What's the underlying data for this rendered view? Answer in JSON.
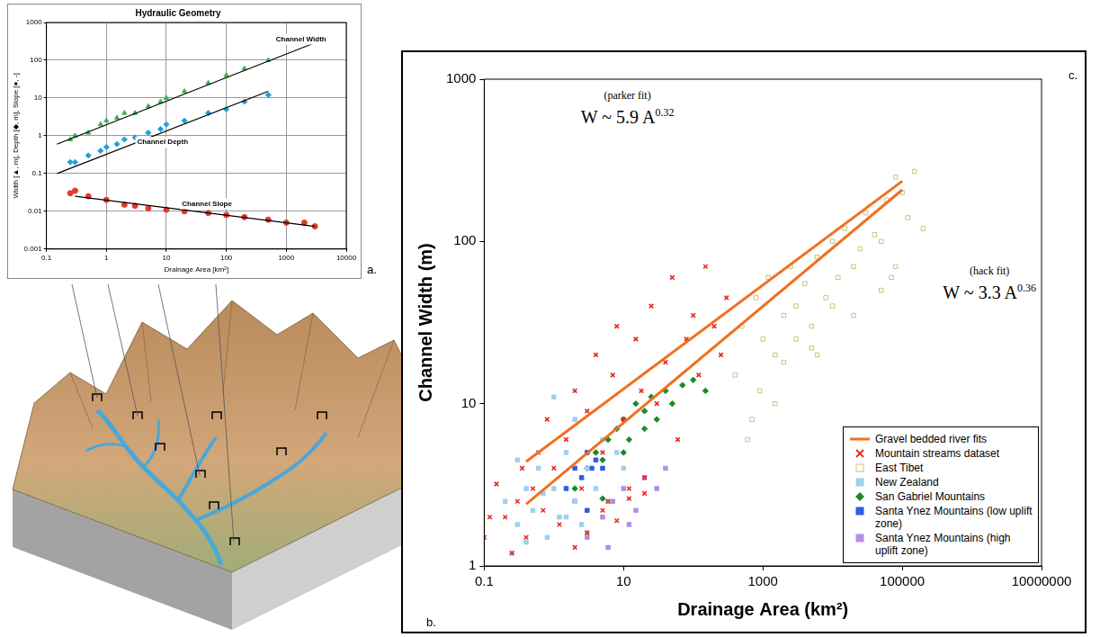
{
  "chart_data": [
    {
      "type": "scatter",
      "panel": "a.",
      "title": "Hydraulic Geometry",
      "x_label": "Drainage Area [km²]",
      "y_label": "Width [▲, m], Depth [◆, m], Slope [●, -]",
      "log": true,
      "grid": true,
      "xlim": [
        0.1,
        10000
      ],
      "xticks": [
        0.1,
        1,
        10,
        100,
        1000,
        10000
      ],
      "ylim": [
        0.001,
        1000
      ],
      "yticks": [
        0.001,
        0.01,
        0.1,
        1,
        10,
        100,
        1000
      ],
      "series": [
        {
          "name": "Channel Width",
          "color": "#3cb050",
          "marker": "triangle",
          "x": [
            0.25,
            0.3,
            0.5,
            0.8,
            1,
            1.5,
            2,
            3,
            5,
            8,
            10,
            20,
            50,
            100,
            200,
            500
          ],
          "values": [
            0.8,
            1,
            1.2,
            2,
            2.5,
            3,
            4,
            4,
            6,
            8,
            10,
            15,
            25,
            40,
            60,
            100
          ],
          "fit": {
            "x": [
              0.15,
              5000
            ],
            "values": [
              0.6,
              400
            ]
          }
        },
        {
          "name": "Channel Depth",
          "color": "#1f9fdf",
          "marker": "diamond",
          "x": [
            0.25,
            0.3,
            0.5,
            0.8,
            1,
            1.5,
            2,
            3,
            5,
            8,
            10,
            20,
            50,
            100,
            200,
            500
          ],
          "values": [
            0.2,
            0.2,
            0.3,
            0.4,
            0.5,
            0.6,
            0.8,
            0.9,
            1.2,
            1.5,
            2,
            2.5,
            4,
            5,
            8,
            12
          ],
          "fit": {
            "x": [
              0.15,
              500
            ],
            "values": [
              0.1,
              15
            ]
          }
        },
        {
          "name": "Channel Slope",
          "color": "#e03a28",
          "marker": "circle",
          "x": [
            0.25,
            0.3,
            0.5,
            1,
            2,
            3,
            5,
            10,
            20,
            50,
            100,
            200,
            500,
            1000,
            2000,
            3000
          ],
          "values": [
            0.03,
            0.035,
            0.025,
            0.02,
            0.015,
            0.014,
            0.012,
            0.011,
            0.01,
            0.009,
            0.008,
            0.007,
            0.006,
            0.005,
            0.005,
            0.004
          ],
          "fit": {
            "x": [
              0.3,
              3000
            ],
            "values": [
              0.025,
              0.004
            ]
          }
        }
      ]
    },
    {
      "type": "scatter",
      "panel": "c.",
      "x_label": "Drainage Area (km²)",
      "y_label": "Channel Width (m)",
      "log": true,
      "grid": false,
      "legend": "lower right",
      "xlim": [
        0.1,
        10000000
      ],
      "xticks": [
        0.1,
        10,
        1000,
        100000,
        10000000
      ],
      "ylim": [
        1,
        1000
      ],
      "yticks": [
        1,
        10,
        100,
        1000
      ],
      "annotations": [
        {
          "label": "(parker fit)",
          "formula": "W ~ 5.9 A",
          "exponent": "0.32"
        },
        {
          "label": "(hack fit)",
          "formula": "W ~ 3.3 A",
          "exponent": "0.36"
        }
      ],
      "series": [
        {
          "name": "Gravel bedded river fits",
          "type": "line",
          "color": "#f07020",
          "x": [
            0.4,
            100000,
            null,
            0.4,
            100000
          ],
          "values": [
            4.4,
            235,
            null,
            2.4,
            208
          ]
        },
        {
          "name": "Mountain streams dataset",
          "color": "#e8281e",
          "marker": "x",
          "x": [
            0.1,
            0.12,
            0.15,
            0.2,
            0.25,
            0.3,
            0.35,
            0.4,
            0.5,
            0.6,
            0.7,
            0.8,
            1,
            1.2,
            1.5,
            2,
            2.5,
            3,
            4,
            5,
            6,
            7,
            8,
            10,
            12,
            15,
            18,
            20,
            25,
            30,
            40,
            50,
            60,
            80,
            100,
            120,
            150,
            200,
            250,
            300,
            2,
            3,
            5,
            8,
            12,
            20
          ],
          "values": [
            1.5,
            2,
            3.2,
            2,
            1.2,
            2.5,
            4,
            1.5,
            3,
            5,
            2.2,
            8,
            4,
            1.8,
            6,
            12,
            3,
            9,
            20,
            5,
            2.5,
            15,
            30,
            8,
            3,
            25,
            12,
            2.8,
            40,
            10,
            18,
            60,
            6,
            25,
            35,
            15,
            70,
            30,
            20,
            45,
            1.3,
            1.6,
            2.2,
            1.9,
            2.6,
            3.5
          ]
        },
        {
          "name": "East Tibet",
          "color": "#c9c27a",
          "marker": "hollow_square",
          "x": [
            400,
            500,
            700,
            800,
            1000,
            1200,
            1500,
            2000,
            2500,
            3000,
            4000,
            5000,
            6000,
            8000,
            10000,
            12000,
            15000,
            20000,
            25000,
            30000,
            40000,
            50000,
            60000,
            70000,
            80000,
            100000,
            120000,
            150000,
            200000,
            1500,
            3000,
            6000,
            10000,
            20000,
            50000,
            80000,
            600,
            900,
            2000,
            5000
          ],
          "values": [
            15,
            30,
            8,
            45,
            25,
            60,
            20,
            35,
            70,
            40,
            55,
            30,
            80,
            45,
            100,
            60,
            120,
            70,
            90,
            150,
            110,
            100,
            180,
            60,
            250,
            200,
            140,
            270,
            120,
            10,
            25,
            20,
            40,
            35,
            50,
            70,
            6,
            12,
            18,
            22
          ]
        },
        {
          "name": "New Zealand",
          "color": "#9fd0f0",
          "marker": "square",
          "x": [
            0.2,
            0.3,
            0.4,
            0.5,
            0.6,
            0.8,
            1,
            1.2,
            1.5,
            2,
            2.5,
            3,
            4,
            5,
            6,
            8,
            10,
            0.4,
            0.7,
            1,
            1.5,
            2,
            3,
            0.3,
            0.25
          ],
          "values": [
            2.5,
            1.8,
            3,
            2.2,
            4,
            1.5,
            3,
            2,
            5,
            2.5,
            1.8,
            4,
            3,
            6,
            2.5,
            5,
            4,
            1.4,
            2.8,
            11,
            2,
            8,
            1.6,
            4.5,
            1.2
          ]
        },
        {
          "name": "San Gabriel Mountains",
          "color": "#1a8a2a",
          "marker": "diamond",
          "x": [
            2,
            3,
            4,
            5,
            6,
            8,
            10,
            12,
            15,
            20,
            25,
            30,
            40,
            50,
            70,
            100,
            150,
            5,
            10,
            20
          ],
          "values": [
            3,
            4,
            5,
            4.5,
            6,
            7,
            8,
            6,
            10,
            9,
            11,
            8,
            12,
            10,
            13,
            14,
            12,
            2.6,
            5,
            7
          ]
        },
        {
          "name": "Santa Ynez Mountains (low uplift zone)",
          "color": "#2f5ce0",
          "marker": "square",
          "x": [
            1.5,
            2,
            2.5,
            3,
            3.5,
            4,
            5,
            2,
            3
          ],
          "values": [
            3,
            4,
            3.5,
            5,
            4,
            4.5,
            4,
            2.5,
            2.2
          ]
        },
        {
          "name": "Santa Ynez Mountains (high uplift zone)",
          "color": "#b58ce8",
          "marker": "square",
          "x": [
            3,
            5,
            7,
            10,
            15,
            20,
            30,
            40,
            6,
            12
          ],
          "values": [
            1.5,
            2,
            2.5,
            3,
            2.2,
            3.5,
            3,
            4,
            1.3,
            1.8
          ]
        }
      ]
    }
  ],
  "illustration": {
    "panel": "b."
  }
}
